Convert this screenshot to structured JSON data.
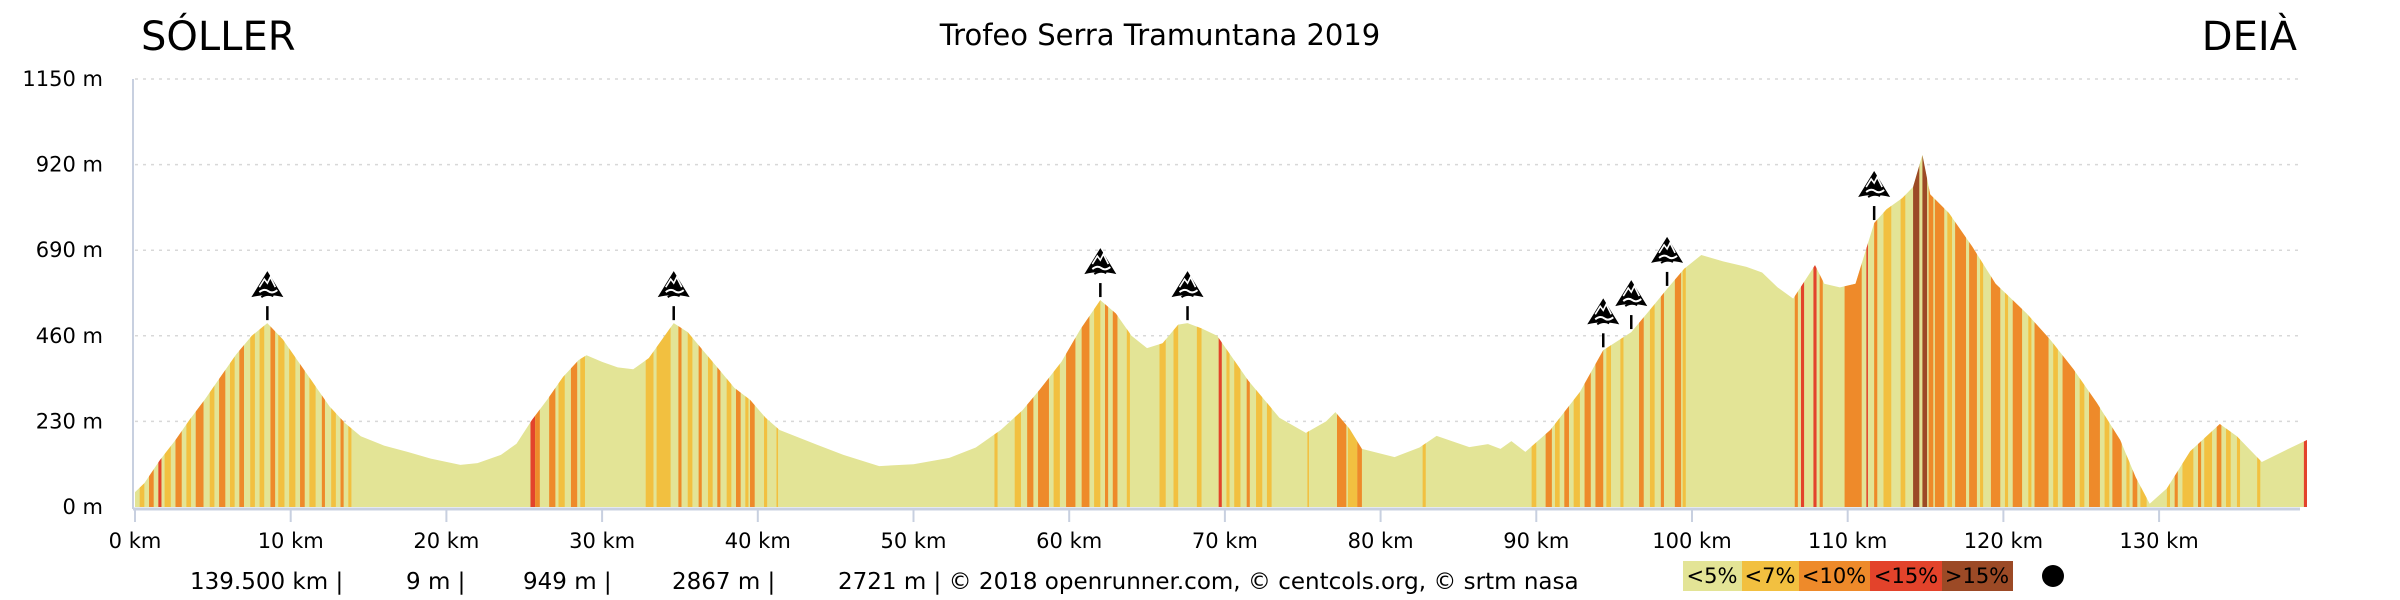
{
  "header": {
    "start_place": "SÓLLER",
    "title": "Trofeo Serra Tramuntana 2019",
    "end_place": "DEIÀ"
  },
  "footer": {
    "distance": "139.500 km |",
    "min_elevation": "9 m |",
    "max_elevation": "949 m |",
    "elevation_gain": "2867 m |",
    "elevation_loss_credits": "2721 m | © 2018 openrunner.com, © centcols.org, © srtm nasa"
  },
  "legend": {
    "items": [
      {
        "label": "<5%",
        "color": "#e3e496"
      },
      {
        "label": "<7%",
        "color": "#f2c040"
      },
      {
        "label": "<10%",
        "color": "#ee8a2a"
      },
      {
        "label": "<15%",
        "color": "#e3432b"
      },
      {
        "label": ">15%",
        "color": "#9c4a26"
      }
    ],
    "marker": "black-dot-icon"
  },
  "colors": {
    "axis": "#c8d0e0",
    "grid": "#d8d8d8",
    "marker": "#000000"
  },
  "chart_data": {
    "type": "area",
    "title": "Trofeo Serra Tramuntana 2019",
    "xlabel": "",
    "ylabel": "",
    "xlim": [
      0,
      139.5
    ],
    "ylim": [
      0,
      1150
    ],
    "grid": true,
    "x_ticks": [
      {
        "value": 0,
        "label": "0 km"
      },
      {
        "value": 10,
        "label": "10 km"
      },
      {
        "value": 20,
        "label": "20 km"
      },
      {
        "value": 30,
        "label": "30 km"
      },
      {
        "value": 40,
        "label": "40 km"
      },
      {
        "value": 50,
        "label": "50 km"
      },
      {
        "value": 60,
        "label": "60 km"
      },
      {
        "value": 70,
        "label": "70 km"
      },
      {
        "value": 80,
        "label": "80 km"
      },
      {
        "value": 90,
        "label": "90 km"
      },
      {
        "value": 100,
        "label": "100 km"
      },
      {
        "value": 110,
        "label": "110 km"
      },
      {
        "value": 120,
        "label": "120 km"
      },
      {
        "value": 130,
        "label": "130 km"
      }
    ],
    "y_ticks": [
      {
        "value": 1150,
        "label": "1150 m"
      },
      {
        "value": 920,
        "label": "920 m"
      },
      {
        "value": 690,
        "label": "690 m"
      },
      {
        "value": 460,
        "label": "460 m"
      },
      {
        "value": 230,
        "label": "230 m"
      },
      {
        "value": 0,
        "label": "0 m"
      }
    ],
    "profile": [
      [
        0.0,
        40
      ],
      [
        0.6,
        64
      ],
      [
        1.6,
        126
      ],
      [
        2.6,
        180
      ],
      [
        3.5,
        234
      ],
      [
        4.5,
        290
      ],
      [
        5.5,
        350
      ],
      [
        6.5,
        410
      ],
      [
        7.5,
        460
      ],
      [
        8.5,
        494
      ],
      [
        9.5,
        450
      ],
      [
        10.5,
        390
      ],
      [
        11.5,
        330
      ],
      [
        12.5,
        270
      ],
      [
        13.5,
        225
      ],
      [
        14.5,
        190
      ],
      [
        16,
        165
      ],
      [
        17.5,
        148
      ],
      [
        19,
        130
      ],
      [
        20.9,
        113
      ],
      [
        22,
        118
      ],
      [
        23.5,
        140
      ],
      [
        24.5,
        170
      ],
      [
        25.5,
        234
      ],
      [
        26.5,
        290
      ],
      [
        27.5,
        350
      ],
      [
        28.5,
        395
      ],
      [
        29.0,
        408
      ],
      [
        30,
        390
      ],
      [
        31,
        375
      ],
      [
        32,
        370
      ],
      [
        33,
        400
      ],
      [
        34.6,
        494
      ],
      [
        35.5,
        470
      ],
      [
        36.5,
        420
      ],
      [
        37.5,
        370
      ],
      [
        38.5,
        320
      ],
      [
        39.5,
        288
      ],
      [
        40.5,
        240
      ],
      [
        41.4,
        207
      ],
      [
        43.8,
        167
      ],
      [
        45.5,
        140
      ],
      [
        47.8,
        110
      ],
      [
        50,
        115
      ],
      [
        52.3,
        132
      ],
      [
        54,
        160
      ],
      [
        55.6,
        207
      ],
      [
        57,
        260
      ],
      [
        58.1,
        315
      ],
      [
        59.5,
        390
      ],
      [
        60.7,
        476
      ],
      [
        62.0,
        556
      ],
      [
        63,
        520
      ],
      [
        64,
        460
      ],
      [
        65,
        427
      ],
      [
        66,
        440
      ],
      [
        67,
        490
      ],
      [
        67.6,
        494
      ],
      [
        68.5,
        480
      ],
      [
        69.5,
        460
      ],
      [
        70.5,
        400
      ],
      [
        71.5,
        340
      ],
      [
        72.5,
        290
      ],
      [
        73.5,
        240
      ],
      [
        75.2,
        199
      ],
      [
        76.5,
        230
      ],
      [
        77.1,
        255
      ],
      [
        78,
        210
      ],
      [
        78.8,
        156
      ],
      [
        80.9,
        134
      ],
      [
        82.5,
        160
      ],
      [
        83.6,
        191
      ],
      [
        85.7,
        161
      ],
      [
        86.9,
        169
      ],
      [
        87.7,
        156
      ],
      [
        88.4,
        177
      ],
      [
        89.3,
        148
      ],
      [
        90.9,
        207
      ],
      [
        92.8,
        309
      ],
      [
        94.3,
        421
      ],
      [
        96.1,
        470
      ],
      [
        97.5,
        540
      ],
      [
        98.4,
        586
      ],
      [
        99.5,
        640
      ],
      [
        100.6,
        677
      ],
      [
        102,
        660
      ],
      [
        103.5,
        645
      ],
      [
        104.5,
        630
      ],
      [
        105.5,
        590
      ],
      [
        106.5,
        560
      ],
      [
        107.9,
        650
      ],
      [
        108.5,
        600
      ],
      [
        109.5,
        590
      ],
      [
        110.5,
        600
      ],
      [
        111.7,
        763
      ],
      [
        112.5,
        800
      ],
      [
        113.5,
        830
      ],
      [
        114.2,
        860
      ],
      [
        114.8,
        946
      ],
      [
        115.3,
        840
      ],
      [
        116.5,
        790
      ],
      [
        118,
        700
      ],
      [
        119.5,
        600
      ],
      [
        120.5,
        560
      ],
      [
        121.5,
        520
      ],
      [
        123,
        450
      ],
      [
        124.5,
        370
      ],
      [
        126,
        280
      ],
      [
        127.5,
        180
      ],
      [
        128.5,
        80
      ],
      [
        129.4,
        9
      ],
      [
        130.5,
        50
      ],
      [
        132,
        150
      ],
      [
        133.9,
        223
      ],
      [
        135,
        190
      ],
      [
        136.6,
        121
      ],
      [
        138,
        150
      ],
      [
        139.5,
        180
      ]
    ],
    "gradient_bands": [
      [
        0.3,
        0.6,
        1
      ],
      [
        0.9,
        1.2,
        2
      ],
      [
        1.5,
        1.7,
        3
      ],
      [
        1.9,
        2.3,
        1
      ],
      [
        2.6,
        3.0,
        2
      ],
      [
        3.3,
        3.6,
        1
      ],
      [
        3.9,
        4.4,
        2
      ],
      [
        4.8,
        5.1,
        1
      ],
      [
        5.4,
        5.8,
        2
      ],
      [
        6.1,
        6.4,
        1
      ],
      [
        6.7,
        7.0,
        2
      ],
      [
        7.4,
        7.7,
        1
      ],
      [
        8.0,
        8.3,
        1
      ],
      [
        8.7,
        9.0,
        2
      ],
      [
        9.2,
        9.6,
        1
      ],
      [
        9.9,
        10.3,
        1
      ],
      [
        10.6,
        10.9,
        2
      ],
      [
        11.2,
        11.6,
        1
      ],
      [
        12.0,
        12.2,
        2
      ],
      [
        12.6,
        12.9,
        1
      ],
      [
        13.2,
        13.4,
        2
      ],
      [
        13.7,
        13.9,
        1
      ],
      [
        25.4,
        25.7,
        3
      ],
      [
        25.7,
        26.0,
        2
      ],
      [
        26.6,
        27.0,
        2
      ],
      [
        27.2,
        27.6,
        1
      ],
      [
        28.0,
        28.4,
        2
      ],
      [
        28.6,
        28.9,
        1
      ],
      [
        32.8,
        33.3,
        1
      ],
      [
        33.5,
        34.4,
        1
      ],
      [
        34.9,
        35.1,
        2
      ],
      [
        35.5,
        35.8,
        1
      ],
      [
        36.2,
        36.4,
        2
      ],
      [
        36.8,
        37.1,
        1
      ],
      [
        37.4,
        37.6,
        2
      ],
      [
        38.0,
        38.3,
        1
      ],
      [
        38.6,
        38.9,
        2
      ],
      [
        39.2,
        39.4,
        1
      ],
      [
        39.5,
        39.8,
        2
      ],
      [
        40.4,
        40.6,
        1
      ],
      [
        41.2,
        41.3,
        1
      ],
      [
        55.2,
        55.4,
        1
      ],
      [
        56.5,
        56.9,
        1
      ],
      [
        57.3,
        57.7,
        2
      ],
      [
        58.0,
        58.7,
        2
      ],
      [
        59.0,
        59.4,
        1
      ],
      [
        59.8,
        60.4,
        2
      ],
      [
        60.8,
        61.3,
        2
      ],
      [
        61.6,
        62.0,
        1
      ],
      [
        62.3,
        62.5,
        2
      ],
      [
        62.8,
        63.1,
        2
      ],
      [
        63.7,
        63.9,
        1
      ],
      [
        65.8,
        66.2,
        1
      ],
      [
        66.7,
        67.0,
        1
      ],
      [
        68.2,
        68.5,
        1
      ],
      [
        69.6,
        69.8,
        3
      ],
      [
        70.1,
        70.3,
        1
      ],
      [
        70.6,
        71.0,
        1
      ],
      [
        71.4,
        71.6,
        2
      ],
      [
        72.0,
        72.4,
        1
      ],
      [
        72.7,
        73.0,
        1
      ],
      [
        75.3,
        75.4,
        1
      ],
      [
        77.2,
        77.8,
        2
      ],
      [
        77.9,
        78.5,
        1
      ],
      [
        78.5,
        78.8,
        2
      ],
      [
        82.7,
        82.9,
        1
      ],
      [
        89.7,
        90.0,
        1
      ],
      [
        90.6,
        91.0,
        2
      ],
      [
        91.2,
        91.5,
        1
      ],
      [
        91.8,
        92.1,
        2
      ],
      [
        92.4,
        92.8,
        1
      ],
      [
        93.1,
        93.5,
        2
      ],
      [
        93.8,
        94.3,
        2
      ],
      [
        94.5,
        94.8,
        1
      ],
      [
        95.4,
        95.6,
        1
      ],
      [
        96.6,
        96.9,
        2
      ],
      [
        97.3,
        97.6,
        1
      ],
      [
        98.0,
        98.2,
        2
      ],
      [
        98.9,
        99.3,
        2
      ],
      [
        99.4,
        99.6,
        1
      ],
      [
        106.6,
        106.8,
        2
      ],
      [
        107.0,
        107.2,
        3
      ],
      [
        107.8,
        108.0,
        3
      ],
      [
        108.2,
        108.4,
        2
      ],
      [
        109.8,
        110.9,
        2
      ],
      [
        111.2,
        111.3,
        3
      ],
      [
        111.7,
        111.9,
        2
      ],
      [
        112.3,
        112.8,
        1
      ],
      [
        113.4,
        113.7,
        1
      ],
      [
        114.2,
        114.6,
        4
      ],
      [
        114.8,
        115.1,
        4
      ],
      [
        115.2,
        115.5,
        2
      ],
      [
        115.6,
        116.2,
        2
      ],
      [
        116.4,
        116.7,
        1
      ],
      [
        116.9,
        117.6,
        2
      ],
      [
        117.8,
        118.3,
        2
      ],
      [
        118.5,
        118.7,
        1
      ],
      [
        119.2,
        119.8,
        2
      ],
      [
        120.1,
        120.3,
        1
      ],
      [
        120.6,
        121.2,
        2
      ],
      [
        121.6,
        121.8,
        1
      ],
      [
        122.0,
        122.9,
        2
      ],
      [
        123.2,
        123.5,
        1
      ],
      [
        123.8,
        124.6,
        2
      ],
      [
        124.9,
        125.2,
        1
      ],
      [
        125.5,
        126.2,
        2
      ],
      [
        126.5,
        126.8,
        1
      ],
      [
        127.0,
        127.6,
        2
      ],
      [
        127.9,
        128.1,
        1
      ],
      [
        128.3,
        128.6,
        2
      ],
      [
        128.8,
        129.2,
        1
      ],
      [
        130.5,
        130.7,
        1
      ],
      [
        131.0,
        131.2,
        2
      ],
      [
        131.5,
        132.2,
        1
      ],
      [
        132.5,
        132.7,
        2
      ],
      [
        132.9,
        133.4,
        1
      ],
      [
        133.7,
        134.0,
        2
      ],
      [
        134.3,
        134.6,
        1
      ],
      [
        135.0,
        135.2,
        1
      ],
      [
        136.3,
        136.5,
        1
      ],
      [
        139.3,
        139.5,
        3
      ]
    ],
    "summit_markers": [
      {
        "km": 8.5,
        "elevation": 494,
        "icon": "mountain-pass-icon"
      },
      {
        "km": 34.6,
        "elevation": 494,
        "icon": "mountain-pass-icon"
      },
      {
        "km": 62.0,
        "elevation": 556,
        "icon": "mountain-pass-icon"
      },
      {
        "km": 67.6,
        "elevation": 494,
        "icon": "mountain-pass-icon"
      },
      {
        "km": 94.3,
        "elevation": 421,
        "icon": "mountain-pass-icon"
      },
      {
        "km": 96.1,
        "elevation": 470,
        "icon": "mountain-pass-icon"
      },
      {
        "km": 98.4,
        "elevation": 586,
        "icon": "mountain-pass-icon"
      },
      {
        "km": 111.7,
        "elevation": 763,
        "icon": "mountain-pass-icon"
      }
    ]
  }
}
